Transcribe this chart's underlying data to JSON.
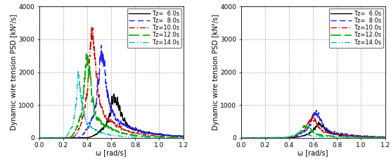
{
  "ylabel": "Dynamic wire tension PSD [kN²/s]",
  "xlabel": "ω [rad/s]",
  "xlim": [
    0,
    1.2
  ],
  "ylim": [
    0,
    4000
  ],
  "yticks": [
    0,
    1000,
    2000,
    3000,
    4000
  ],
  "xticks": [
    0,
    0.2,
    0.4,
    0.6,
    0.8,
    1.0,
    1.2
  ],
  "legend_labels": [
    "Tz=  6.0s",
    "Tz=  8.0s",
    "Tz=10.0s",
    "Tz=12.0s",
    "Tz=14.0s"
  ],
  "line_colors": [
    "#000000",
    "#2222ff",
    "#cc0000",
    "#00aa00",
    "#00bbbb"
  ],
  "background_color": "#ffffff",
  "grid_color": "#999999",
  "tick_fontsize": 6.5,
  "label_fontsize": 7,
  "legend_fontsize": 6
}
